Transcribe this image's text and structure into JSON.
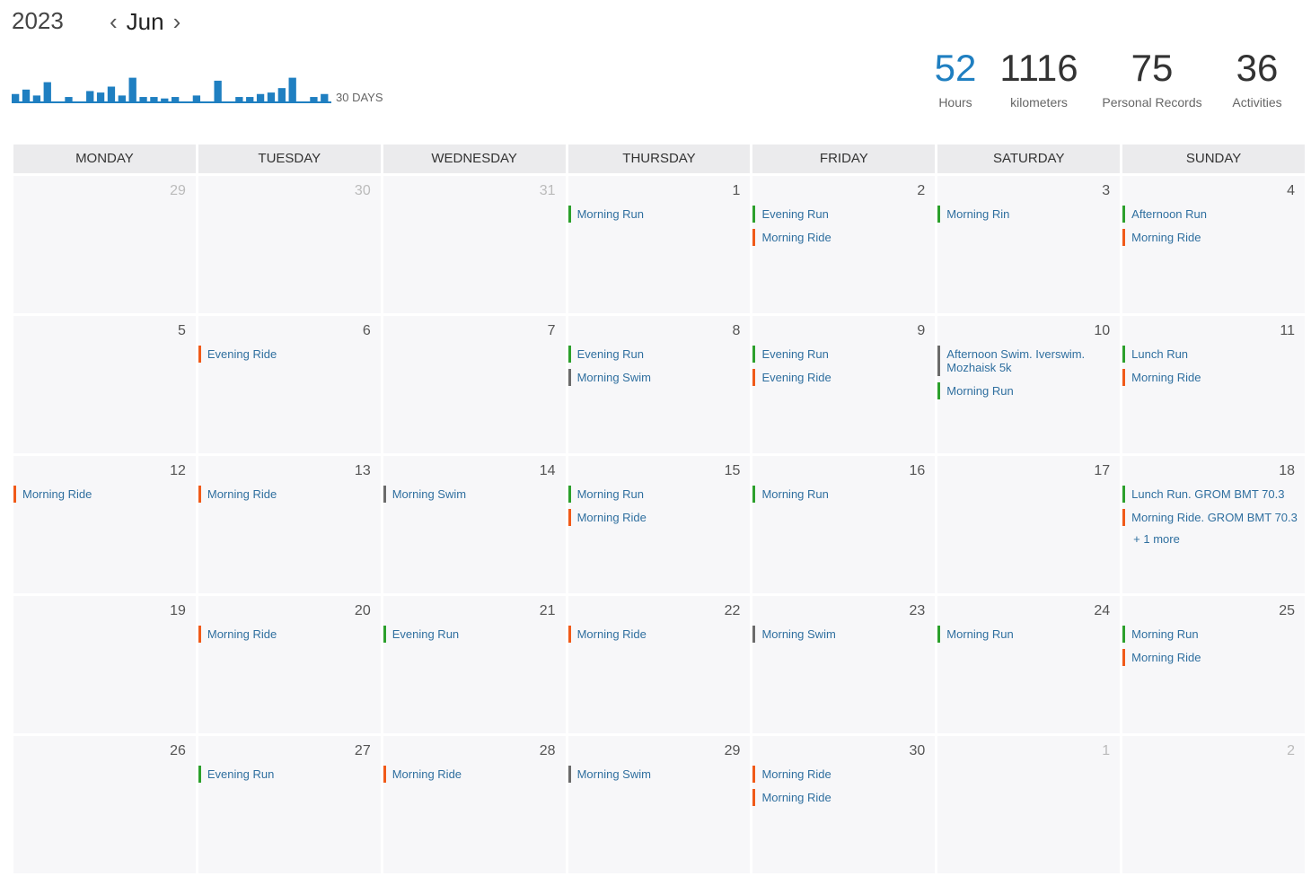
{
  "header": {
    "year": "2023",
    "month": "Jun",
    "prev_icon": "chevron-left-icon",
    "next_icon": "chevron-right-icon",
    "sparkline_label": "30 DAYS"
  },
  "sparkline": {
    "color": "#1f7fc1",
    "values": [
      0.25,
      0.4,
      0.2,
      0.65,
      0,
      0.15,
      0,
      0.35,
      0.3,
      0.5,
      0.2,
      0.8,
      0.15,
      0.15,
      0.1,
      0.15,
      0,
      0.2,
      0,
      0.7,
      0,
      0.15,
      0.15,
      0.25,
      0.3,
      0.45,
      0.8,
      0,
      0.15,
      0.25
    ]
  },
  "stats": [
    {
      "value": "52",
      "label": "Hours",
      "highlight": true
    },
    {
      "value": "1116",
      "label": "kilometers",
      "highlight": false
    },
    {
      "value": "75",
      "label": "Personal Records",
      "highlight": false
    },
    {
      "value": "36",
      "label": "Activities",
      "highlight": false
    }
  ],
  "colors": {
    "run": "#2ca02c",
    "ride": "#f05a19",
    "swim": "#6b6b6b"
  },
  "weekdays": [
    "MONDAY",
    "TUESDAY",
    "WEDNESDAY",
    "THURSDAY",
    "FRIDAY",
    "SATURDAY",
    "SUNDAY"
  ],
  "weeks": [
    [
      {
        "day": "29",
        "other": true,
        "acts": []
      },
      {
        "day": "30",
        "other": true,
        "acts": []
      },
      {
        "day": "31",
        "other": true,
        "acts": []
      },
      {
        "day": "1",
        "acts": [
          {
            "name": "Morning Run",
            "type": "run"
          }
        ]
      },
      {
        "day": "2",
        "acts": [
          {
            "name": "Evening Run",
            "type": "run"
          },
          {
            "name": "Morning Ride",
            "type": "ride"
          }
        ]
      },
      {
        "day": "3",
        "acts": [
          {
            "name": "Morning Rin",
            "type": "run"
          }
        ]
      },
      {
        "day": "4",
        "acts": [
          {
            "name": "Afternoon Run",
            "type": "run"
          },
          {
            "name": "Morning Ride",
            "type": "ride"
          }
        ]
      }
    ],
    [
      {
        "day": "5",
        "acts": []
      },
      {
        "day": "6",
        "acts": [
          {
            "name": "Evening Ride",
            "type": "ride"
          }
        ]
      },
      {
        "day": "7",
        "acts": []
      },
      {
        "day": "8",
        "acts": [
          {
            "name": "Evening Run",
            "type": "run"
          },
          {
            "name": "Morning Swim",
            "type": "swim"
          }
        ]
      },
      {
        "day": "9",
        "acts": [
          {
            "name": "Evening Run",
            "type": "run"
          },
          {
            "name": "Evening Ride",
            "type": "ride"
          }
        ]
      },
      {
        "day": "10",
        "acts": [
          {
            "name": "Afternoon Swim. Iverswim. Mozhaisk 5k",
            "type": "swim"
          },
          {
            "name": "Morning Run",
            "type": "run"
          }
        ]
      },
      {
        "day": "11",
        "acts": [
          {
            "name": "Lunch Run",
            "type": "run"
          },
          {
            "name": "Morning Ride",
            "type": "ride"
          }
        ]
      }
    ],
    [
      {
        "day": "12",
        "acts": [
          {
            "name": "Morning Ride",
            "type": "ride"
          }
        ]
      },
      {
        "day": "13",
        "acts": [
          {
            "name": "Morning Ride",
            "type": "ride"
          }
        ]
      },
      {
        "day": "14",
        "acts": [
          {
            "name": "Morning Swim",
            "type": "swim"
          }
        ]
      },
      {
        "day": "15",
        "acts": [
          {
            "name": "Morning Run",
            "type": "run"
          },
          {
            "name": "Morning Ride",
            "type": "ride"
          }
        ]
      },
      {
        "day": "16",
        "acts": [
          {
            "name": "Morning Run",
            "type": "run"
          }
        ]
      },
      {
        "day": "17",
        "acts": []
      },
      {
        "day": "18",
        "acts": [
          {
            "name": "Lunch Run. GROM BMT 70.3",
            "type": "run"
          },
          {
            "name": "Morning Ride. GROM BMT 70.3",
            "type": "ride"
          }
        ],
        "more": "+ 1 more"
      }
    ],
    [
      {
        "day": "19",
        "acts": []
      },
      {
        "day": "20",
        "acts": [
          {
            "name": "Morning Ride",
            "type": "ride"
          }
        ]
      },
      {
        "day": "21",
        "acts": [
          {
            "name": "Evening Run",
            "type": "run"
          }
        ]
      },
      {
        "day": "22",
        "acts": [
          {
            "name": "Morning Ride",
            "type": "ride"
          }
        ]
      },
      {
        "day": "23",
        "acts": [
          {
            "name": "Morning Swim",
            "type": "swim"
          }
        ]
      },
      {
        "day": "24",
        "acts": [
          {
            "name": "Morning Run",
            "type": "run"
          }
        ]
      },
      {
        "day": "25",
        "acts": [
          {
            "name": "Morning Run",
            "type": "run"
          },
          {
            "name": "Morning Ride",
            "type": "ride"
          }
        ]
      }
    ],
    [
      {
        "day": "26",
        "acts": []
      },
      {
        "day": "27",
        "acts": [
          {
            "name": "Evening Run",
            "type": "run"
          }
        ]
      },
      {
        "day": "28",
        "acts": [
          {
            "name": "Morning Ride",
            "type": "ride"
          }
        ]
      },
      {
        "day": "29",
        "acts": [
          {
            "name": "Morning Swim",
            "type": "swim"
          }
        ]
      },
      {
        "day": "30",
        "acts": [
          {
            "name": "Morning Ride",
            "type": "ride"
          },
          {
            "name": "Morning Ride",
            "type": "ride"
          }
        ]
      },
      {
        "day": "1",
        "other": true,
        "acts": []
      },
      {
        "day": "2",
        "other": true,
        "acts": []
      }
    ]
  ]
}
